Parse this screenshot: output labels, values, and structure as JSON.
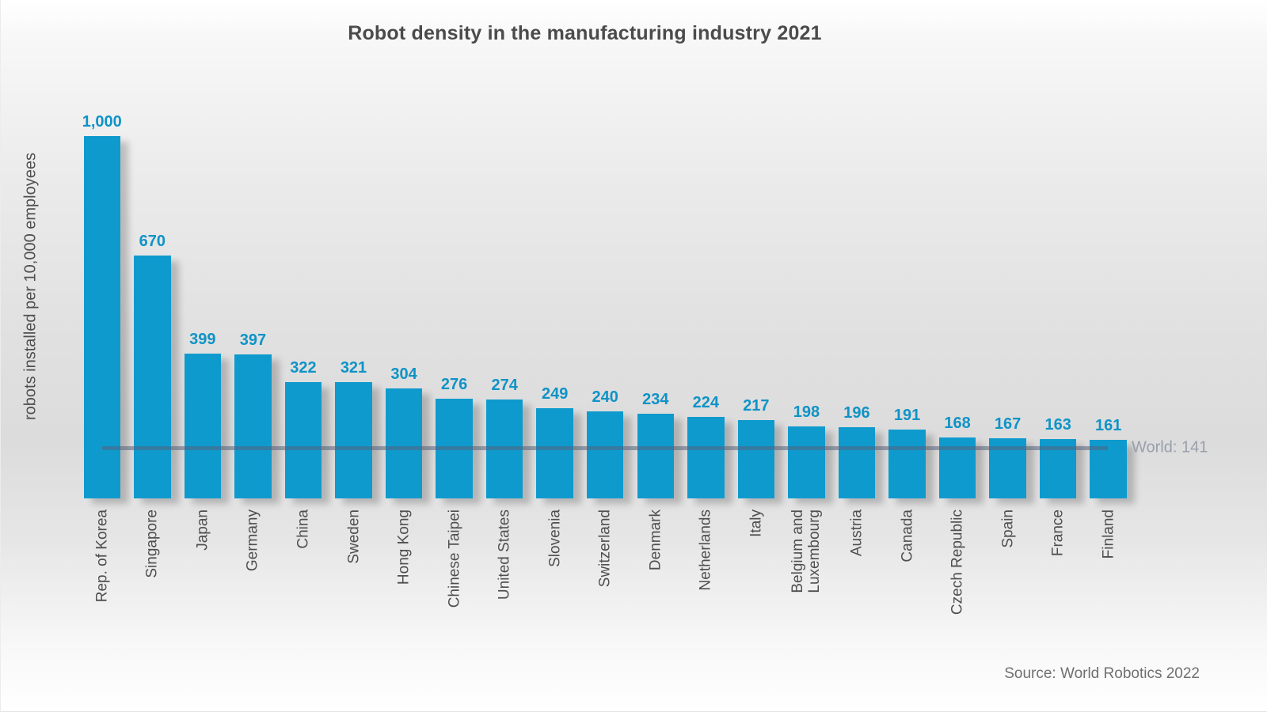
{
  "title": "Robot density in the manufacturing industry 2021",
  "source": "Source: World Robotics 2022",
  "reference_line_label": "World: 141",
  "colors": {
    "bar": "#0f9ace",
    "value_label": "#0f93c6",
    "reference_line": "rgba(85,99,124,0.55)",
    "reference_label": "#98a0ac",
    "title_text": "#4b4b4b",
    "axis_text": "#4f4f4f",
    "source_text": "#707070"
  },
  "chart_data": {
    "type": "bar",
    "title": "Robot density in the manufacturing industry 2021",
    "xlabel": "",
    "ylabel": "robots installed per 10,000 employees",
    "ylim": [
      0,
      1000
    ],
    "grid": false,
    "legend_position": "none",
    "bar_color": "#0f9ace",
    "categories": [
      "Rep. of Korea",
      "Singapore",
      "Japan",
      "Germany",
      "China",
      "Sweden",
      "Hong Kong",
      "Chinese Taipei",
      "United States",
      "Slovenia",
      "Switzerland",
      "Denmark",
      "Netherlands",
      "Italy",
      "Belgium and\nLuxembourg",
      "Austria",
      "Canada",
      "Czech Republic",
      "Spain",
      "France",
      "Finland"
    ],
    "values": [
      1000,
      670,
      399,
      397,
      322,
      321,
      304,
      276,
      274,
      249,
      240,
      234,
      224,
      217,
      198,
      196,
      191,
      168,
      167,
      163,
      161
    ],
    "value_labels": [
      "1,000",
      "670",
      "399",
      "397",
      "322",
      "321",
      "304",
      "276",
      "274",
      "249",
      "240",
      "234",
      "224",
      "217",
      "198",
      "196",
      "191",
      "168",
      "167",
      "163",
      "161"
    ],
    "reference_line": {
      "label": "World: 141",
      "value": 141
    },
    "annotations": [
      "World: 141"
    ]
  }
}
